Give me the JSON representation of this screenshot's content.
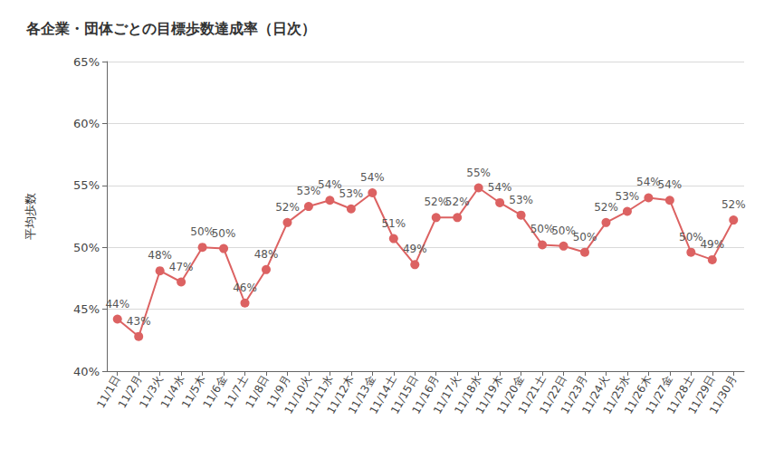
{
  "chart_data": {
    "type": "line",
    "title": "各企業・団体ごとの目標歩数達成率（日次）",
    "y_label": "平均歩数",
    "categories": [
      "11/1日",
      "11/2月",
      "11/3火",
      "11/4水",
      "11/5木",
      "11/6金",
      "11/7土",
      "11/8日",
      "11/9月",
      "11/10火",
      "11/11水",
      "11/12木",
      "11/13金",
      "11/14土",
      "11/15日",
      "11/16月",
      "11/17火",
      "11/18水",
      "11/19木",
      "11/20金",
      "11/21土",
      "11/22日",
      "11/23月",
      "11/24火",
      "11/25水",
      "11/26木",
      "11/27金",
      "11/28土",
      "11/29日",
      "11/30月"
    ],
    "values": [
      44.2,
      42.8,
      48.1,
      47.2,
      50.0,
      49.9,
      45.5,
      48.2,
      52.0,
      53.3,
      53.8,
      53.1,
      54.4,
      50.7,
      48.6,
      52.4,
      52.4,
      54.8,
      53.6,
      52.6,
      50.2,
      50.1,
      49.6,
      52.0,
      52.9,
      54.0,
      53.8,
      49.6,
      49.0,
      52.2
    ],
    "value_labels": [
      "44%",
      "43%",
      "48%",
      "47%",
      "50%",
      "50%",
      "46%",
      "48%",
      "52%",
      "53%",
      "54%",
      "53%",
      "54%",
      "51%",
      "49%",
      "52%",
      "52%",
      "55%",
      "54%",
      "53%",
      "50%",
      "50%",
      "50%",
      "52%",
      "53%",
      "54%",
      "54%",
      "50%",
      "49%",
      "52%"
    ],
    "color": "#dc6262",
    "marker": "circle",
    "ylim": [
      40,
      65
    ],
    "yticks": [
      {
        "value": 40,
        "label": "40%"
      },
      {
        "value": 45,
        "label": "45%"
      },
      {
        "value": 50,
        "label": "50%"
      },
      {
        "value": 55,
        "label": "55%"
      },
      {
        "value": 60,
        "label": "60%"
      },
      {
        "value": 65,
        "label": "65%"
      }
    ],
    "grid": true,
    "data_labels": true
  }
}
